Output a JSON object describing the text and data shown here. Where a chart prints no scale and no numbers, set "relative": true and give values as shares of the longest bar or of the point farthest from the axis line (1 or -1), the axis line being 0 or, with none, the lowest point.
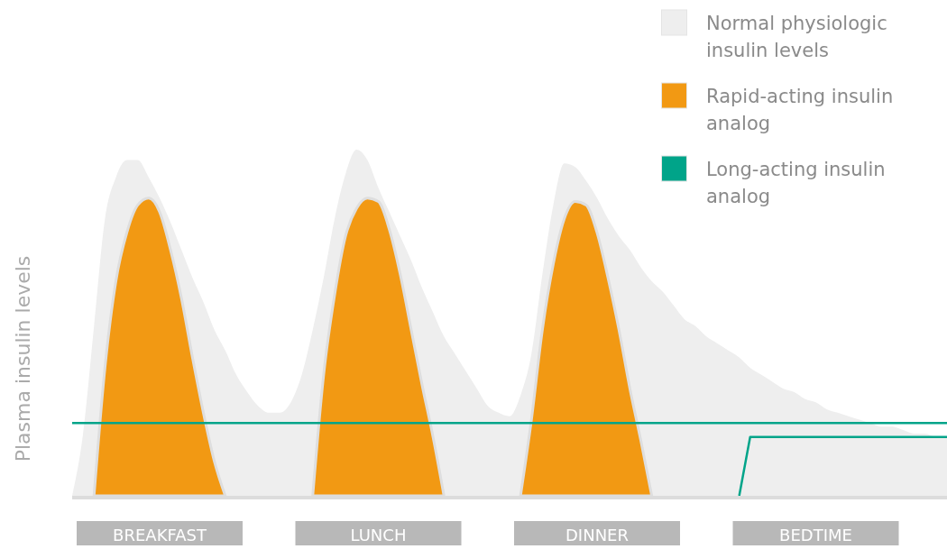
{
  "chart_data": {
    "type": "area",
    "relative": true,
    "ylabel": "Plasma insulin levels",
    "legend": "top right",
    "categories": [
      null,
      null,
      null,
      null,
      null,
      null,
      null,
      null,
      "BREAKFAST",
      null,
      null,
      null,
      null,
      null,
      null,
      null,
      null,
      null,
      null,
      null,
      null,
      null,
      null,
      null,
      null,
      null,
      null,
      null,
      "LUNCH",
      null,
      null,
      null,
      null,
      null,
      null,
      null,
      null,
      null,
      null,
      null,
      null,
      null,
      null,
      null,
      null,
      null,
      null,
      null,
      "DINNER",
      null,
      null,
      null,
      null,
      null,
      null,
      null,
      null,
      null,
      null,
      null,
      null,
      null,
      null,
      null,
      null,
      null,
      null,
      null,
      "BEDTIME",
      null,
      null,
      null,
      null,
      null,
      null,
      null,
      null,
      null,
      null,
      null,
      null
    ],
    "series": [
      {
        "name": "Normal physiologic insulin levels",
        "color": "#eeeeee",
        "values": [
          0,
          0.18,
          0.49,
          0.8,
          0.92,
          0.97,
          0.97,
          0.92,
          0.86,
          0.79,
          0.71,
          0.63,
          0.56,
          0.48,
          0.42,
          0.35,
          0.3,
          0.26,
          0.24,
          0.24,
          0.27,
          0.35,
          0.48,
          0.63,
          0.8,
          0.93,
          1,
          0.97,
          0.89,
          0.82,
          0.75,
          0.68,
          0.6,
          0.53,
          0.46,
          0.41,
          0.36,
          0.31,
          0.26,
          0.24,
          0.23,
          0.29,
          0.41,
          0.64,
          0.84,
          0.96,
          0.95,
          0.91,
          0.86,
          0.8,
          0.75,
          0.71,
          0.66,
          0.62,
          0.59,
          0.55,
          0.51,
          0.49,
          0.46,
          0.44,
          0.42,
          0.4,
          0.37,
          0.35,
          0.33,
          0.31,
          0.3,
          0.28,
          0.27,
          0.25,
          0.24,
          0.23,
          0.22,
          0.21,
          0.2,
          0.2,
          0.19,
          0.18,
          0.18,
          0.17,
          0.17
        ]
      },
      {
        "name": "Rapid-acting insulin analog",
        "color": "#f29913",
        "values": [
          null,
          null,
          0,
          0.37,
          0.62,
          0.76,
          0.84,
          0.86,
          0.82,
          0.71,
          0.57,
          0.4,
          0.24,
          0.1,
          0,
          null,
          null,
          null,
          null,
          null,
          null,
          null,
          0,
          0.35,
          0.58,
          0.75,
          0.83,
          0.86,
          0.85,
          0.77,
          0.64,
          0.48,
          0.32,
          0.17,
          0,
          null,
          null,
          null,
          null,
          null,
          null,
          0,
          0.22,
          0.48,
          0.67,
          0.8,
          0.85,
          0.84,
          0.76,
          0.63,
          0.48,
          0.31,
          0.16,
          0,
          null,
          null,
          null,
          null,
          null,
          null,
          null,
          null,
          null,
          null,
          null,
          null,
          null,
          null,
          null,
          null,
          null,
          null,
          null,
          null,
          null,
          null,
          null,
          null,
          null,
          null,
          null
        ]
      },
      {
        "name": "Long-acting insulin analog",
        "type": "line",
        "color": "#00a489",
        "values": [
          0.21,
          0.21,
          0.21,
          0.21,
          0.21,
          0.21,
          0.21,
          0.21,
          0.21,
          0.21,
          0.21,
          0.21,
          0.21,
          0.21,
          0.21,
          0.21,
          0.21,
          0.21,
          0.21,
          0.21,
          0.21,
          0.21,
          0.21,
          0.21,
          0.21,
          0.21,
          0.21,
          0.21,
          0.21,
          0.21,
          0.21,
          0.21,
          0.21,
          0.21,
          0.21,
          0.21,
          0.21,
          0.21,
          0.21,
          0.21,
          0.21,
          0.21,
          0.21,
          0.21,
          0.21,
          0.21,
          0.21,
          0.21,
          0.21,
          0.21,
          0.21,
          0.21,
          0.21,
          0.21,
          0.21,
          0.21,
          0.21,
          0.21,
          0.21,
          0.21,
          0.21,
          0.21,
          0.21,
          0.21,
          0.21,
          0.21,
          0.21,
          0.21,
          0.21,
          0.21,
          0.21,
          0.21,
          0.21,
          0.21,
          0.21,
          0.21,
          0.21,
          0.21,
          0.21,
          0.21,
          0.21
        ]
      },
      {
        "type": "line",
        "color": "#00a489",
        "values": [
          null,
          null,
          null,
          null,
          null,
          null,
          null,
          null,
          null,
          null,
          null,
          null,
          null,
          null,
          null,
          null,
          null,
          null,
          null,
          null,
          null,
          null,
          null,
          null,
          null,
          null,
          null,
          null,
          null,
          null,
          null,
          null,
          null,
          null,
          null,
          null,
          null,
          null,
          null,
          null,
          null,
          null,
          null,
          null,
          null,
          null,
          null,
          null,
          null,
          null,
          null,
          null,
          null,
          null,
          null,
          null,
          null,
          null,
          null,
          null,
          null,
          0,
          0.17,
          0.17,
          0.17,
          0.17,
          0.17,
          0.17,
          0.17,
          0.17,
          0.17,
          0.17,
          0.17,
          0.17,
          0.17,
          0.17,
          0.17,
          0.17,
          0.17,
          0.17,
          0.17
        ]
      }
    ]
  }
}
